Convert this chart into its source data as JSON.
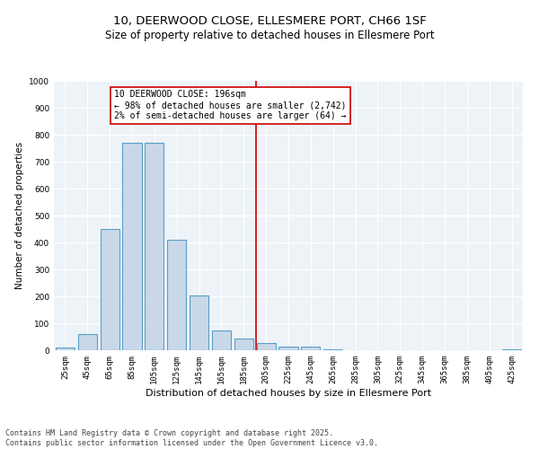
{
  "title": "10, DEERWOOD CLOSE, ELLESMERE PORT, CH66 1SF",
  "subtitle": "Size of property relative to detached houses in Ellesmere Port",
  "xlabel": "Distribution of detached houses by size in Ellesmere Port",
  "ylabel": "Number of detached properties",
  "bar_labels": [
    "25sqm",
    "45sqm",
    "65sqm",
    "85sqm",
    "105sqm",
    "125sqm",
    "145sqm",
    "165sqm",
    "185sqm",
    "205sqm",
    "225sqm",
    "245sqm",
    "265sqm",
    "285sqm",
    "305sqm",
    "325sqm",
    "345sqm",
    "365sqm",
    "385sqm",
    "405sqm",
    "425sqm"
  ],
  "bar_values": [
    10,
    60,
    450,
    770,
    770,
    410,
    205,
    75,
    45,
    27,
    14,
    14,
    3,
    0,
    0,
    0,
    0,
    0,
    0,
    0,
    5
  ],
  "bar_color": "#c8d8e8",
  "bar_edge_color": "#5a9fc8",
  "vline_color": "#cc0000",
  "annotation_text": "10 DEERWOOD CLOSE: 196sqm\n← 98% of detached houses are smaller (2,742)\n2% of semi-detached houses are larger (64) →",
  "annotation_box_color": "#ffffff",
  "annotation_box_edge_color": "#cc0000",
  "ylim": [
    0,
    1000
  ],
  "yticks": [
    0,
    100,
    200,
    300,
    400,
    500,
    600,
    700,
    800,
    900,
    1000
  ],
  "background_color": "#eef3f8",
  "footer_text": "Contains HM Land Registry data © Crown copyright and database right 2025.\nContains public sector information licensed under the Open Government Licence v3.0.",
  "title_fontsize": 9.5,
  "subtitle_fontsize": 8.5,
  "xlabel_fontsize": 8,
  "ylabel_fontsize": 7.5,
  "tick_fontsize": 6.5,
  "annotation_fontsize": 7,
  "footer_fontsize": 6
}
